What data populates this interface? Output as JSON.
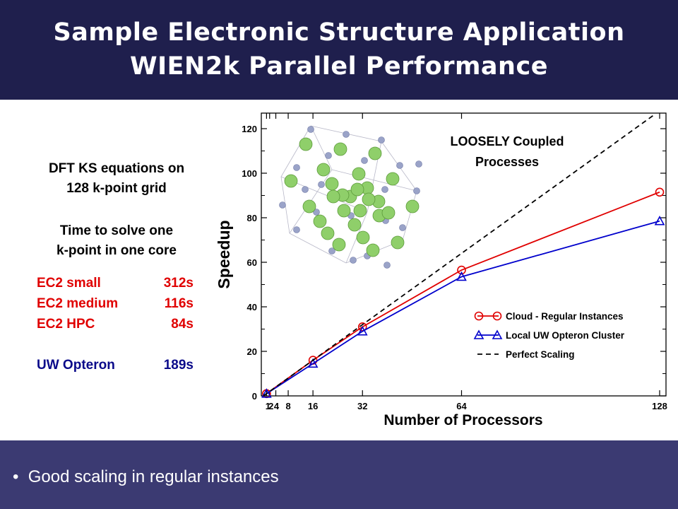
{
  "slide": {
    "title_line1": "Sample Electronic Structure Application",
    "title_line2": "WIEN2k Parallel Performance",
    "left_heading_line1": "DFT KS equations on",
    "left_heading_line2": "128 k-point grid",
    "time_line1": "Time to solve one",
    "time_line2": "k-point in one core",
    "timings": [
      {
        "label": "EC2 small",
        "value": "312s"
      },
      {
        "label": "EC2 medium",
        "value": "116s"
      },
      {
        "label": "EC2 HPC",
        "value": "84s"
      },
      {
        "label": "UW Opteron",
        "value": "189s"
      }
    ],
    "bullet": "Good scaling in regular instances",
    "colors": {
      "header_bg": "#1f1f4d",
      "footer_bg": "#3b3a72",
      "ec2_text": "#e00000",
      "uw_text": "#0a0a8a"
    }
  },
  "chart_data": {
    "type": "line",
    "xlabel": "Number of Processors",
    "ylabel": "Speedup",
    "xlim": [
      0,
      128
    ],
    "ylim": [
      0,
      130
    ],
    "x_ticks": [
      1,
      2,
      4,
      8,
      16,
      32,
      64,
      128
    ],
    "x_tick_labels": [
      "1",
      "2",
      "4",
      "8",
      "16",
      "32",
      "64",
      "128"
    ],
    "y_ticks": [
      0,
      20,
      40,
      60,
      80,
      100,
      120
    ],
    "annotation_line1": "LOOSELY Coupled",
    "annotation_line2": "Processes",
    "legend_position": "bottom-right",
    "series": [
      {
        "name": "Cloud - Regular Instances",
        "color": "#e00000",
        "marker": "circle",
        "x": [
          1,
          16,
          32,
          64,
          128
        ],
        "y": [
          1,
          16,
          31,
          56.5,
          91.5
        ]
      },
      {
        "name": "Local UW Opteron Cluster",
        "color": "#0000cc",
        "marker": "triangle",
        "x": [
          1,
          16,
          32,
          64,
          128
        ],
        "y": [
          1,
          14.5,
          29,
          53.5,
          78.5
        ]
      },
      {
        "name": "Perfect Scaling",
        "color": "#000000",
        "marker": "none",
        "dashed": true,
        "x": [
          0,
          130
        ],
        "y": [
          0,
          130
        ]
      }
    ]
  }
}
